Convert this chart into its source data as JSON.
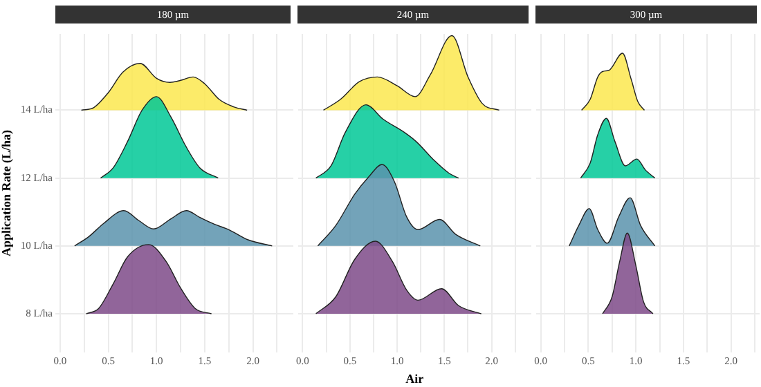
{
  "chart_data": [
    {
      "type": "area",
      "title": "180 µm",
      "ylabel": "Application Rate (L/ha)",
      "grid": true,
      "xlim": [
        -0.05,
        2.42
      ],
      "ylim": [
        6.86,
        16.25
      ],
      "xticks": [
        {
          "value": 0,
          "label": "0.0"
        },
        {
          "value": 0.25,
          "label": null
        },
        {
          "value": 0.5,
          "label": "0.5"
        },
        {
          "value": 0.75,
          "label": null
        },
        {
          "value": 1,
          "label": "1.0"
        },
        {
          "value": 1.25,
          "label": null
        },
        {
          "value": 1.5,
          "label": "1.5"
        },
        {
          "value": 1.75,
          "label": null
        },
        {
          "value": 2,
          "label": "2.0"
        },
        {
          "value": 2.25,
          "label": null
        }
      ],
      "yticks": [
        {
          "value": 8,
          "label": "8 L/ha"
        },
        {
          "value": 10,
          "label": "10 L/ha"
        },
        {
          "value": 12,
          "label": "12 L/ha"
        },
        {
          "value": 14,
          "label": "14 L/ha"
        }
      ],
      "series": [
        {
          "color": "#7e4a88",
          "x": [
            0.27,
            0.4,
            0.55,
            0.7,
            0.92,
            1.1,
            1.25,
            1.4,
            1.57
          ],
          "values": [
            8,
            8.16,
            8.88,
            9.68,
            10.04,
            9.54,
            8.76,
            8.16,
            8
          ]
        },
        {
          "color": "#5b93ad",
          "x": [
            0.15,
            0.3,
            0.45,
            0.66,
            0.82,
            0.97,
            1.15,
            1.31,
            1.45,
            1.6,
            1.75,
            1.95,
            2.2
          ],
          "values": [
            10,
            10.28,
            10.66,
            11.04,
            10.74,
            10.5,
            10.8,
            11.04,
            10.84,
            10.64,
            10.48,
            10.18,
            10
          ]
        },
        {
          "color": "#00c896",
          "x": [
            0.42,
            0.55,
            0.7,
            0.85,
            1.0,
            1.15,
            1.3,
            1.45,
            1.64
          ],
          "values": [
            12,
            12.3,
            13.08,
            14,
            14.4,
            13.8,
            12.96,
            12.3,
            12
          ]
        },
        {
          "color": "#fbe84f",
          "x": [
            0.22,
            0.35,
            0.5,
            0.65,
            0.83,
            1.0,
            1.14,
            1.25,
            1.38,
            1.5,
            1.65,
            1.8,
            1.94
          ],
          "values": [
            14,
            14.08,
            14.52,
            15.12,
            15.38,
            14.94,
            14.82,
            14.88,
            14.98,
            14.78,
            14.32,
            14.1,
            14
          ]
        }
      ]
    },
    {
      "type": "area",
      "title": "240 µm",
      "xlabel": "Air",
      "grid": true,
      "tick_labels": "x",
      "xlim": [
        -0.05,
        2.42
      ],
      "ylim": [
        6.86,
        16.25
      ],
      "yticks": [
        {
          "value": 8,
          "label": null
        },
        {
          "value": 10,
          "label": null
        },
        {
          "value": 12,
          "label": null
        },
        {
          "value": 14,
          "label": null
        }
      ],
      "xticks": [
        {
          "value": 0,
          "label": "0.0"
        },
        {
          "value": 0.25,
          "label": null
        },
        {
          "value": 0.5,
          "label": "0.5"
        },
        {
          "value": 0.75,
          "label": null
        },
        {
          "value": 1,
          "label": "1.0"
        },
        {
          "value": 1.25,
          "label": null
        },
        {
          "value": 1.5,
          "label": "1.5"
        },
        {
          "value": 1.75,
          "label": null
        },
        {
          "value": 2,
          "label": "2.0"
        },
        {
          "value": 2.25,
          "label": null
        }
      ],
      "series": [
        {
          "color": "#7e4a88",
          "x": [
            0.14,
            0.35,
            0.55,
            0.77,
            0.95,
            1.1,
            1.22,
            1.47,
            1.65,
            1.89
          ],
          "values": [
            8,
            8.5,
            9.6,
            10.14,
            9.54,
            8.7,
            8.4,
            8.74,
            8.24,
            8
          ]
        },
        {
          "color": "#5b93ad",
          "x": [
            0.16,
            0.35,
            0.55,
            0.7,
            0.84,
            0.97,
            1.1,
            1.22,
            1.45,
            1.62,
            1.88
          ],
          "values": [
            10,
            10.6,
            11.52,
            12.04,
            12.4,
            11.9,
            10.86,
            10.48,
            10.78,
            10.34,
            10
          ]
        },
        {
          "color": "#00c896",
          "x": [
            0.14,
            0.3,
            0.45,
            0.67,
            0.85,
            1.08,
            1.2,
            1.4,
            1.55,
            1.65
          ],
          "values": [
            12,
            12.36,
            13.34,
            14.16,
            13.74,
            13.34,
            13.08,
            12.5,
            12.14,
            12
          ]
        },
        {
          "color": "#fbe84f",
          "x": [
            0.22,
            0.4,
            0.6,
            0.79,
            1.0,
            1.19,
            1.35,
            1.58,
            1.75,
            1.9,
            2.08
          ],
          "values": [
            14,
            14.32,
            14.84,
            14.98,
            14.72,
            14.4,
            15.04,
            16.2,
            14.98,
            14.2,
            14
          ]
        }
      ]
    },
    {
      "type": "area",
      "title": "300 µm",
      "grid": true,
      "tick_labels": "x",
      "xlim": [
        -0.05,
        2.3
      ],
      "ylim": [
        6.86,
        16.25
      ],
      "yticks": [
        {
          "value": 8,
          "label": null
        },
        {
          "value": 10,
          "label": null
        },
        {
          "value": 12,
          "label": null
        },
        {
          "value": 14,
          "label": null
        }
      ],
      "xticks": [
        {
          "value": 0,
          "label": "0.0"
        },
        {
          "value": 0.25,
          "label": null
        },
        {
          "value": 0.5,
          "label": "0.5"
        },
        {
          "value": 0.75,
          "label": null
        },
        {
          "value": 1,
          "label": "1.0"
        },
        {
          "value": 1.25,
          "label": null
        },
        {
          "value": 1.5,
          "label": "1.5"
        },
        {
          "value": 1.75,
          "label": null
        },
        {
          "value": 2,
          "label": "2.0"
        },
        {
          "value": 2.25,
          "label": null
        }
      ],
      "series": [
        {
          "color": "#7e4a88",
          "x": [
            0.65,
            0.75,
            0.83,
            0.91,
            1.0,
            1.08,
            1.18
          ],
          "values": [
            8,
            8.5,
            9.54,
            10.38,
            9.42,
            8.36,
            8
          ]
        },
        {
          "color": "#5b93ad",
          "x": [
            0.3,
            0.4,
            0.51,
            0.6,
            0.7,
            0.82,
            0.94,
            1.05,
            1.2
          ],
          "values": [
            10,
            10.6,
            11.1,
            10.48,
            10.08,
            10.86,
            11.42,
            10.6,
            10
          ]
        },
        {
          "color": "#00c896",
          "x": [
            0.42,
            0.52,
            0.6,
            0.69,
            0.78,
            0.89,
            1.01,
            1.1,
            1.2
          ],
          "values": [
            12,
            12.44,
            13.28,
            13.76,
            13.08,
            12.36,
            12.56,
            12.24,
            12
          ]
        },
        {
          "color": "#fbe84f",
          "x": [
            0.43,
            0.52,
            0.6,
            0.65,
            0.72,
            0.86,
            0.95,
            1.02,
            1.09
          ],
          "values": [
            14,
            14.32,
            14.98,
            15.14,
            15.18,
            15.68,
            14.92,
            14.26,
            14
          ]
        }
      ]
    }
  ]
}
